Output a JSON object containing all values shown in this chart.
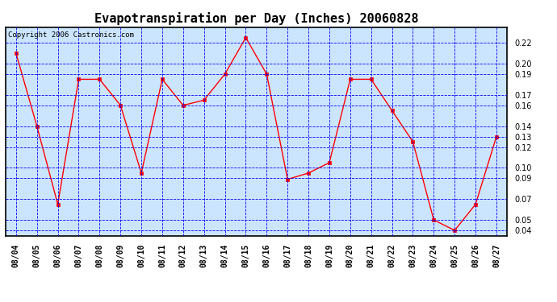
{
  "title": "Evapotranspiration per Day (Inches) 20060828",
  "copyright_text": "Copyright 2006 Castronics.com",
  "dates": [
    "08/04",
    "08/05",
    "08/06",
    "08/07",
    "08/08",
    "08/09",
    "08/10",
    "08/11",
    "08/12",
    "08/13",
    "08/14",
    "08/15",
    "08/16",
    "08/17",
    "08/18",
    "08/19",
    "08/20",
    "08/21",
    "08/22",
    "08/23",
    "08/24",
    "08/25",
    "08/26",
    "08/27"
  ],
  "values": [
    0.21,
    0.14,
    0.065,
    0.185,
    0.185,
    0.16,
    0.095,
    0.185,
    0.16,
    0.165,
    0.19,
    0.225,
    0.19,
    0.089,
    0.095,
    0.105,
    0.185,
    0.185,
    0.155,
    0.125,
    0.05,
    0.04,
    0.065,
    0.13
  ],
  "ylim": [
    0.035,
    0.235
  ],
  "yticks": [
    0.04,
    0.05,
    0.07,
    0.09,
    0.1,
    0.12,
    0.13,
    0.14,
    0.16,
    0.17,
    0.19,
    0.2,
    0.22
  ],
  "line_color": "red",
  "marker": "s",
  "marker_size": 2.5,
  "grid_color": "blue",
  "background_color": "#ffffff",
  "plot_bg_color": "#cce5ff",
  "title_fontsize": 11,
  "tick_fontsize": 7,
  "copyright_fontsize": 6.5
}
